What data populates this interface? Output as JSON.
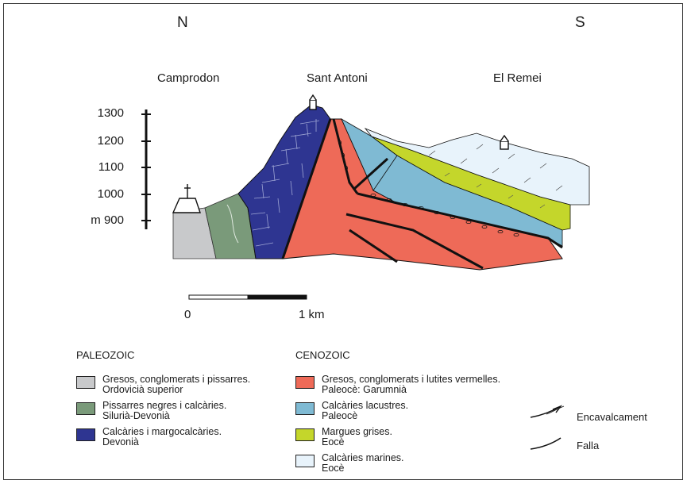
{
  "compass": {
    "north": "N",
    "south": "S"
  },
  "localities": {
    "west": "Camprodon",
    "center": "Sant Antoni",
    "east": "El Remei"
  },
  "elevation_axis": {
    "ticks": [
      "1300",
      "1200",
      "1100",
      "1000",
      "m 900"
    ]
  },
  "scale_bar": {
    "start": "0",
    "end": "1 km"
  },
  "legend": {
    "paleozoic": {
      "title": "PALEOZOIC",
      "items": [
        {
          "line1": "Gresos, conglomerats i pissarres.",
          "line2": "Ordovicià superior",
          "color": "#c8c9cb"
        },
        {
          "line1": "Pissarres negres i calcàries.",
          "line2": "Silurià-Devonià",
          "color": "#7a9a7a"
        },
        {
          "line1": "Calcàries i margocalcàries.",
          "line2": "Devonià",
          "color": "#2e3591"
        }
      ]
    },
    "cenozoic": {
      "title": "CENOZOIC",
      "items": [
        {
          "line1": "Gresos, conglomerats i lutites vermelles.",
          "line2": "Paleocè: Garumnià",
          "color": "#ee6a58"
        },
        {
          "line1": "Calcàries lacustres.",
          "line2": "Paleocè",
          "color": "#7fbad3"
        },
        {
          "line1": "Margues grises.",
          "line2": "Eocè",
          "color": "#c4d62b"
        },
        {
          "line1": "Calcàries marines.",
          "line2": "Eocè",
          "color": "#e8f3fb"
        }
      ]
    },
    "symbols": {
      "thrust": "Encavalcament",
      "fault": "Falla"
    }
  }
}
